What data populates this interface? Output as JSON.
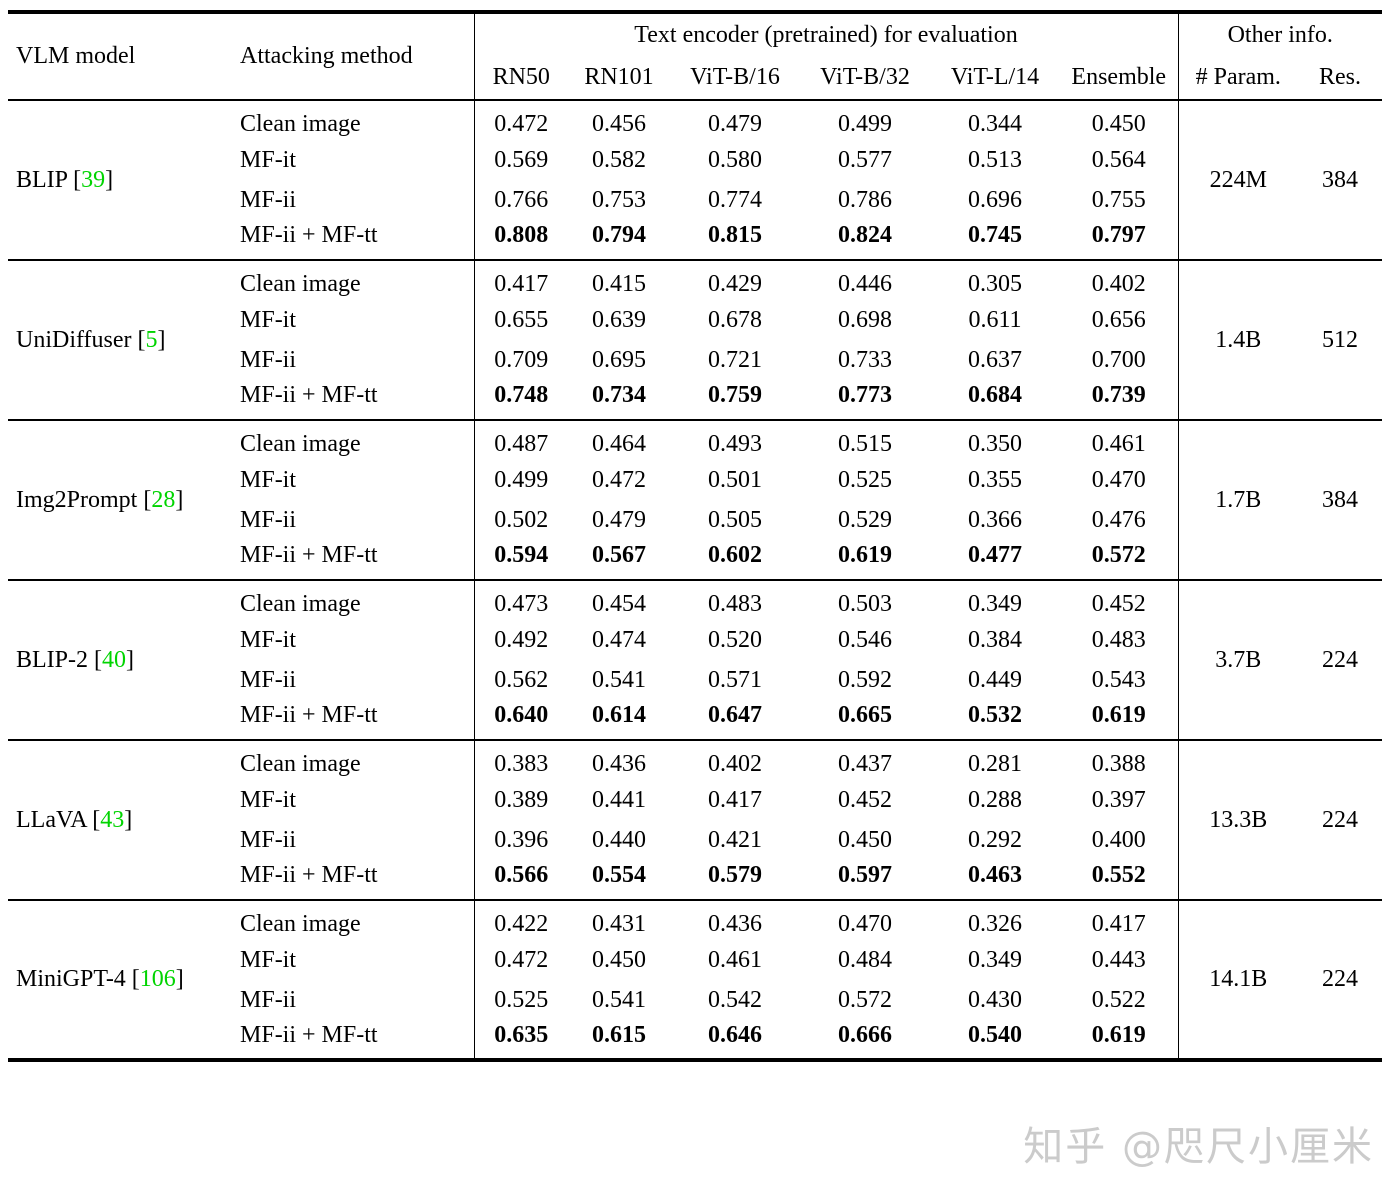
{
  "table": {
    "header": {
      "vlm_model": "VLM model",
      "attacking_method": "Attacking method",
      "encoder_group": "Text encoder (pretrained) for evaluation",
      "encoders": [
        "RN50",
        "RN101",
        "ViT-B/16",
        "ViT-B/32",
        "ViT-L/14",
        "Ensemble"
      ],
      "other_group": "Other info.",
      "other_cols": [
        "# Param.",
        "Res."
      ]
    },
    "groups": [
      {
        "model": "BLIP",
        "citation": "39",
        "params": "224M",
        "res": "384",
        "rows": [
          {
            "method": "Clean image",
            "bold": false,
            "values": [
              "0.472",
              "0.456",
              "0.479",
              "0.499",
              "0.344",
              "0.450"
            ]
          },
          {
            "method": "MF-it",
            "bold": false,
            "values": [
              "0.569",
              "0.582",
              "0.580",
              "0.577",
              "0.513",
              "0.564"
            ]
          },
          {
            "method": "MF-ii",
            "bold": false,
            "values": [
              "0.766",
              "0.753",
              "0.774",
              "0.786",
              "0.696",
              "0.755"
            ]
          },
          {
            "method": "MF-ii + MF-tt",
            "bold": true,
            "values": [
              "0.808",
              "0.794",
              "0.815",
              "0.824",
              "0.745",
              "0.797"
            ]
          }
        ]
      },
      {
        "model": "UniDiffuser",
        "citation": "5",
        "params": "1.4B",
        "res": "512",
        "rows": [
          {
            "method": "Clean image",
            "bold": false,
            "values": [
              "0.417",
              "0.415",
              "0.429",
              "0.446",
              "0.305",
              "0.402"
            ]
          },
          {
            "method": "MF-it",
            "bold": false,
            "values": [
              "0.655",
              "0.639",
              "0.678",
              "0.698",
              "0.611",
              "0.656"
            ]
          },
          {
            "method": "MF-ii",
            "bold": false,
            "values": [
              "0.709",
              "0.695",
              "0.721",
              "0.733",
              "0.637",
              "0.700"
            ]
          },
          {
            "method": "MF-ii + MF-tt",
            "bold": true,
            "values": [
              "0.748",
              "0.734",
              "0.759",
              "0.773",
              "0.684",
              "0.739"
            ]
          }
        ]
      },
      {
        "model": "Img2Prompt",
        "citation": "28",
        "params": "1.7B",
        "res": "384",
        "rows": [
          {
            "method": "Clean image",
            "bold": false,
            "values": [
              "0.487",
              "0.464",
              "0.493",
              "0.515",
              "0.350",
              "0.461"
            ]
          },
          {
            "method": "MF-it",
            "bold": false,
            "values": [
              "0.499",
              "0.472",
              "0.501",
              "0.525",
              "0.355",
              "0.470"
            ]
          },
          {
            "method": "MF-ii",
            "bold": false,
            "values": [
              "0.502",
              "0.479",
              "0.505",
              "0.529",
              "0.366",
              "0.476"
            ]
          },
          {
            "method": "MF-ii + MF-tt",
            "bold": true,
            "values": [
              "0.594",
              "0.567",
              "0.602",
              "0.619",
              "0.477",
              "0.572"
            ]
          }
        ]
      },
      {
        "model": "BLIP-2",
        "citation": "40",
        "params": "3.7B",
        "res": "224",
        "rows": [
          {
            "method": "Clean image",
            "bold": false,
            "values": [
              "0.473",
              "0.454",
              "0.483",
              "0.503",
              "0.349",
              "0.452"
            ]
          },
          {
            "method": "MF-it",
            "bold": false,
            "values": [
              "0.492",
              "0.474",
              "0.520",
              "0.546",
              "0.384",
              "0.483"
            ]
          },
          {
            "method": "MF-ii",
            "bold": false,
            "values": [
              "0.562",
              "0.541",
              "0.571",
              "0.592",
              "0.449",
              "0.543"
            ]
          },
          {
            "method": "MF-ii + MF-tt",
            "bold": true,
            "values": [
              "0.640",
              "0.614",
              "0.647",
              "0.665",
              "0.532",
              "0.619"
            ]
          }
        ]
      },
      {
        "model": "LLaVA",
        "citation": "43",
        "params": "13.3B",
        "res": "224",
        "rows": [
          {
            "method": "Clean image",
            "bold": false,
            "values": [
              "0.383",
              "0.436",
              "0.402",
              "0.437",
              "0.281",
              "0.388"
            ]
          },
          {
            "method": "MF-it",
            "bold": false,
            "values": [
              "0.389",
              "0.441",
              "0.417",
              "0.452",
              "0.288",
              "0.397"
            ]
          },
          {
            "method": "MF-ii",
            "bold": false,
            "values": [
              "0.396",
              "0.440",
              "0.421",
              "0.450",
              "0.292",
              "0.400"
            ]
          },
          {
            "method": "MF-ii + MF-tt",
            "bold": true,
            "values": [
              "0.566",
              "0.554",
              "0.579",
              "0.597",
              "0.463",
              "0.552"
            ]
          }
        ]
      },
      {
        "model": "MiniGPT-4",
        "citation": "106",
        "params": "14.1B",
        "res": "224",
        "rows": [
          {
            "method": "Clean image",
            "bold": false,
            "values": [
              "0.422",
              "0.431",
              "0.436",
              "0.470",
              "0.326",
              "0.417"
            ]
          },
          {
            "method": "MF-it",
            "bold": false,
            "values": [
              "0.472",
              "0.450",
              "0.461",
              "0.484",
              "0.349",
              "0.443"
            ]
          },
          {
            "method": "MF-ii",
            "bold": false,
            "values": [
              "0.525",
              "0.541",
              "0.542",
              "0.572",
              "0.430",
              "0.522"
            ]
          },
          {
            "method": "MF-ii + MF-tt",
            "bold": true,
            "values": [
              "0.635",
              "0.615",
              "0.646",
              "0.666",
              "0.540",
              "0.619"
            ]
          }
        ]
      }
    ]
  },
  "watermark": "知乎 @咫尺小厘米",
  "colors": {
    "citation_green": "#00d400",
    "rule_black": "#000000",
    "watermark_gray": "#cbcbcb"
  }
}
